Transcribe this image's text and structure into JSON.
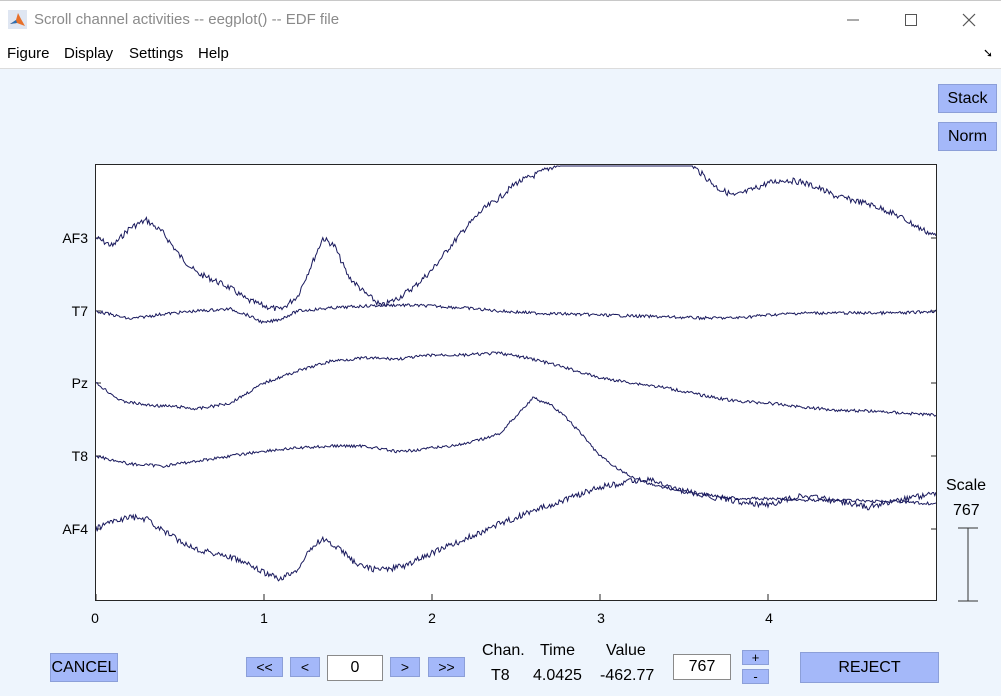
{
  "window": {
    "title": "Scroll channel activities -- eegplot() -- EDF file"
  },
  "menu": [
    "Figure",
    "Display",
    "Settings",
    "Help"
  ],
  "buttons": {
    "stack": "Stack",
    "norm": "Norm",
    "cancel": "CANCEL",
    "reject": "REJECT",
    "first": "<<",
    "prev": "<",
    "next": ">",
    "last": ">>",
    "scale_up": "+",
    "scale_down": "-"
  },
  "navigation": {
    "position_value": "0"
  },
  "scale": {
    "label": "Scale",
    "value": "767",
    "input_value": "767"
  },
  "cursor_info": {
    "chan_label": "Chan.",
    "time_label": "Time",
    "value_label": "Value",
    "chan": "T8",
    "time": "4.0425",
    "value": "-462.77"
  },
  "chart_data": {
    "type": "line",
    "xlim": [
      0,
      5
    ],
    "x_ticks": [
      "0",
      "1",
      "2",
      "3",
      "4"
    ],
    "channels": [
      "AF3",
      "T7",
      "Pz",
      "T8",
      "AF4"
    ],
    "line_color": "#1a1a5e",
    "series": [
      {
        "name": "AF3",
        "points": [
          [
            0,
            0
          ],
          [
            0.1,
            8
          ],
          [
            0.2,
            -10
          ],
          [
            0.3,
            -18
          ],
          [
            0.4,
            -5
          ],
          [
            0.5,
            18
          ],
          [
            0.6,
            35
          ],
          [
            0.7,
            42
          ],
          [
            0.8,
            50
          ],
          [
            0.9,
            62
          ],
          [
            1.0,
            68
          ],
          [
            1.1,
            72
          ],
          [
            1.2,
            58
          ],
          [
            1.3,
            20
          ],
          [
            1.35,
            0
          ],
          [
            1.42,
            8
          ],
          [
            1.5,
            38
          ],
          [
            1.6,
            55
          ],
          [
            1.7,
            68
          ],
          [
            1.8,
            60
          ],
          [
            1.9,
            48
          ],
          [
            2.0,
            32
          ],
          [
            2.1,
            10
          ],
          [
            2.2,
            -10
          ],
          [
            2.3,
            -28
          ],
          [
            2.4,
            -40
          ],
          [
            2.5,
            -55
          ],
          [
            2.6,
            -62
          ],
          [
            2.7,
            -70
          ],
          [
            2.8,
            -76
          ],
          [
            2.9,
            -82
          ],
          [
            3.0,
            -85
          ],
          [
            3.1,
            -88
          ],
          [
            3.2,
            -90
          ],
          [
            3.3,
            -90
          ],
          [
            3.4,
            -92
          ],
          [
            3.5,
            -80
          ],
          [
            3.6,
            -65
          ],
          [
            3.7,
            -50
          ],
          [
            3.8,
            -42
          ],
          [
            3.9,
            -48
          ],
          [
            4.0,
            -55
          ],
          [
            4.1,
            -58
          ],
          [
            4.2,
            -56
          ],
          [
            4.3,
            -50
          ],
          [
            4.4,
            -42
          ],
          [
            4.5,
            -38
          ],
          [
            4.6,
            -34
          ],
          [
            4.7,
            -28
          ],
          [
            4.8,
            -20
          ],
          [
            4.9,
            -10
          ],
          [
            5.0,
            -2
          ]
        ]
      },
      {
        "name": "T7",
        "points": [
          [
            0,
            0
          ],
          [
            0.2,
            8
          ],
          [
            0.4,
            3
          ],
          [
            0.6,
            0
          ],
          [
            0.8,
            -2
          ],
          [
            0.9,
            4
          ],
          [
            1.0,
            12
          ],
          [
            1.1,
            8
          ],
          [
            1.2,
            0
          ],
          [
            1.4,
            -3
          ],
          [
            1.6,
            -5
          ],
          [
            1.8,
            -6
          ],
          [
            2.0,
            -5
          ],
          [
            2.2,
            -3
          ],
          [
            2.4,
            0
          ],
          [
            2.6,
            2
          ],
          [
            2.8,
            3
          ],
          [
            3.0,
            4
          ],
          [
            3.2,
            5
          ],
          [
            3.4,
            6
          ],
          [
            3.6,
            7
          ],
          [
            3.8,
            7
          ],
          [
            4.0,
            4
          ],
          [
            4.2,
            2
          ],
          [
            4.4,
            2
          ],
          [
            4.6,
            2
          ],
          [
            4.8,
            2
          ],
          [
            5.0,
            0
          ]
        ]
      },
      {
        "name": "Pz",
        "points": [
          [
            0,
            0
          ],
          [
            0.15,
            18
          ],
          [
            0.3,
            22
          ],
          [
            0.5,
            24
          ],
          [
            0.6,
            26
          ],
          [
            0.8,
            20
          ],
          [
            1.0,
            0
          ],
          [
            1.2,
            -12
          ],
          [
            1.4,
            -22
          ],
          [
            1.6,
            -25
          ],
          [
            1.8,
            -24
          ],
          [
            2.0,
            -28
          ],
          [
            2.2,
            -28
          ],
          [
            2.4,
            -30
          ],
          [
            2.6,
            -24
          ],
          [
            2.8,
            -15
          ],
          [
            3.0,
            -5
          ],
          [
            3.2,
            0
          ],
          [
            3.4,
            5
          ],
          [
            3.6,
            12
          ],
          [
            3.8,
            18
          ],
          [
            4.0,
            20
          ],
          [
            4.2,
            24
          ],
          [
            4.4,
            27
          ],
          [
            4.6,
            28
          ],
          [
            4.8,
            30
          ],
          [
            5.0,
            32
          ]
        ]
      },
      {
        "name": "T8",
        "points": [
          [
            0,
            0
          ],
          [
            0.2,
            8
          ],
          [
            0.4,
            10
          ],
          [
            0.6,
            5
          ],
          [
            0.8,
            0
          ],
          [
            1.0,
            -5
          ],
          [
            1.2,
            -8
          ],
          [
            1.4,
            -10
          ],
          [
            1.6,
            -10
          ],
          [
            1.8,
            -4
          ],
          [
            2.0,
            -8
          ],
          [
            2.2,
            -12
          ],
          [
            2.4,
            -22
          ],
          [
            2.5,
            -40
          ],
          [
            2.6,
            -58
          ],
          [
            2.7,
            -52
          ],
          [
            2.8,
            -38
          ],
          [
            2.9,
            -20
          ],
          [
            3.0,
            0
          ],
          [
            3.1,
            12
          ],
          [
            3.2,
            22
          ],
          [
            3.3,
            28
          ],
          [
            3.4,
            32
          ],
          [
            3.5,
            36
          ],
          [
            3.6,
            38
          ],
          [
            3.8,
            42
          ],
          [
            4.0,
            43
          ],
          [
            4.2,
            44
          ],
          [
            4.4,
            44
          ],
          [
            4.6,
            45
          ],
          [
            4.8,
            46
          ],
          [
            5.0,
            48
          ]
        ]
      },
      {
        "name": "AF4",
        "points": [
          [
            0,
            0
          ],
          [
            0.1,
            -8
          ],
          [
            0.2,
            -12
          ],
          [
            0.3,
            -10
          ],
          [
            0.4,
            2
          ],
          [
            0.5,
            12
          ],
          [
            0.6,
            20
          ],
          [
            0.7,
            24
          ],
          [
            0.8,
            28
          ],
          [
            0.9,
            35
          ],
          [
            1.0,
            44
          ],
          [
            1.1,
            50
          ],
          [
            1.2,
            40
          ],
          [
            1.3,
            15
          ],
          [
            1.35,
            10
          ],
          [
            1.45,
            20
          ],
          [
            1.55,
            35
          ],
          [
            1.65,
            40
          ],
          [
            1.75,
            40
          ],
          [
            1.85,
            36
          ],
          [
            2.0,
            24
          ],
          [
            2.2,
            10
          ],
          [
            2.4,
            -5
          ],
          [
            2.6,
            -18
          ],
          [
            2.8,
            -30
          ],
          [
            3.0,
            -42
          ],
          [
            3.2,
            -48
          ],
          [
            3.3,
            -50
          ],
          [
            3.4,
            -42
          ],
          [
            3.6,
            -34
          ],
          [
            3.8,
            -28
          ],
          [
            4.0,
            -24
          ],
          [
            4.2,
            -34
          ],
          [
            4.4,
            -28
          ],
          [
            4.6,
            -22
          ],
          [
            4.8,
            -30
          ],
          [
            5.0,
            -36
          ]
        ]
      }
    ]
  }
}
